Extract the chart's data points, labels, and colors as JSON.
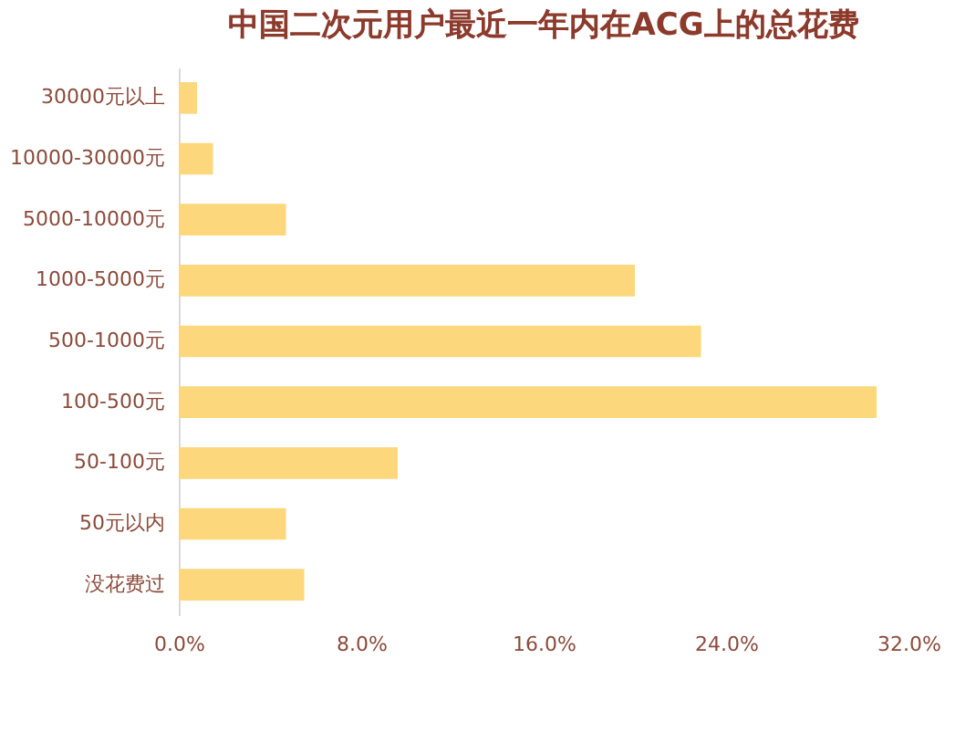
{
  "chart_data": {
    "type": "bar",
    "orientation": "horizontal",
    "title": "中国二次元用户最近一年内在ACG上的总花费",
    "categories": [
      "30000元以上",
      "10000-30000元",
      "5000-10000元",
      "1000-5000元",
      "500-1000元",
      "100-500元",
      "50-100元",
      "50元以内",
      "没花费过"
    ],
    "values": [
      0.8,
      1.5,
      4.7,
      20.0,
      22.9,
      30.6,
      9.6,
      4.7,
      5.5
    ],
    "color": "#fdd77b",
    "xlim": [
      0,
      32
    ],
    "xticks": [
      {
        "value": 0,
        "label": "0.0%"
      },
      {
        "value": 8,
        "label": "8.0%"
      },
      {
        "value": 16,
        "label": "16.0%"
      },
      {
        "value": 24,
        "label": "24.0%"
      },
      {
        "value": 32,
        "label": "32.0%"
      }
    ],
    "grid": false
  }
}
